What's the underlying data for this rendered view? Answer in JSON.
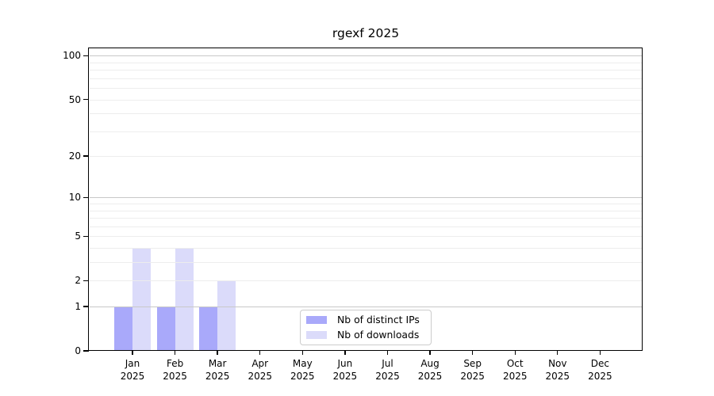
{
  "chart_data": {
    "type": "bar",
    "title": "rgexf 2025",
    "year": "2025",
    "categories": [
      "Jan",
      "Feb",
      "Mar",
      "Apr",
      "May",
      "Jun",
      "Jul",
      "Aug",
      "Sep",
      "Oct",
      "Nov",
      "Dec"
    ],
    "series": [
      {
        "name": "Nb of distinct IPs",
        "color": "#a9a9fa",
        "values": [
          1,
          1,
          1,
          0,
          0,
          0,
          0,
          0,
          0,
          0,
          0,
          0
        ]
      },
      {
        "name": "Nb of downloads",
        "color": "#dbdbfa",
        "values": [
          4,
          4,
          2,
          0,
          0,
          0,
          0,
          0,
          0,
          0,
          0,
          0
        ]
      }
    ],
    "xlabel": "",
    "ylabel": "",
    "y_axis": {
      "scale": "log1p",
      "ticks": [
        0,
        1,
        2,
        5,
        10,
        20,
        50,
        100
      ],
      "range": [
        0,
        113
      ]
    },
    "grid": {
      "major": [
        1,
        10,
        100
      ],
      "minor": [
        2,
        3,
        4,
        5,
        6,
        7,
        8,
        9,
        20,
        30,
        40,
        50,
        60,
        70,
        80,
        90
      ],
      "major_color": "#c8c8c8",
      "minor_color": "#ededed"
    },
    "legend_position": "inside-bottom-center"
  }
}
